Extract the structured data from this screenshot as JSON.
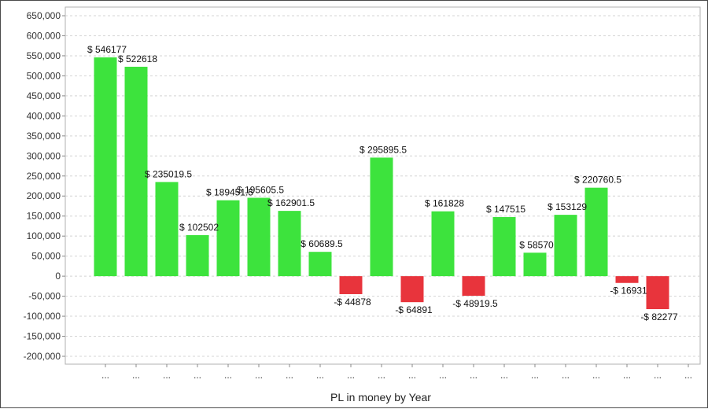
{
  "chart_data": {
    "type": "bar",
    "xlabel": "PL in money by Year",
    "ylim": [
      -200000,
      650000
    ],
    "yticks": [
      "650,000",
      "600,000",
      "550,000",
      "500,000",
      "450,000",
      "400,000",
      "350,000",
      "300,000",
      "250,000",
      "200,000",
      "150,000",
      "100,000",
      "50,000",
      "0",
      "-50,000",
      "-100,000",
      "-150,000",
      "-200,000"
    ],
    "ytick_values": [
      650000,
      600000,
      550000,
      500000,
      450000,
      400000,
      350000,
      300000,
      250000,
      200000,
      150000,
      100000,
      50000,
      0,
      -50000,
      -100000,
      -150000,
      -200000
    ],
    "categories": [
      "...",
      "...",
      "...",
      "...",
      "...",
      "...",
      "...",
      "...",
      "...",
      "...",
      "...",
      "...",
      "...",
      "...",
      "...",
      "...",
      "...",
      "...",
      "...",
      "..."
    ],
    "values": [
      546177,
      522618,
      235019.5,
      102502,
      189451.5,
      195605.5,
      162901.5,
      60689.5,
      -44878,
      295895.5,
      -64891,
      161828,
      -48919.5,
      147515,
      58570,
      153129,
      220760.5,
      -16931,
      -82277,
      0
    ],
    "data_labels": [
      "$ 546177",
      "$ 522618",
      "$ 235019.5",
      "$ 102502",
      "$ 189451.5",
      "$ 195605.5",
      "$ 162901.5",
      "$ 60689.5",
      "-$ 44878",
      "$ 295895.5",
      "-$ 64891",
      "$ 161828",
      "-$ 48919.5",
      "$ 147515",
      "$ 58570",
      "$ 153129",
      "$ 220760.5",
      "-$ 16931",
      "-$ 82277",
      ""
    ],
    "grid": true,
    "colors": {
      "positive": "#3de33d",
      "negative": "#e8343c"
    }
  }
}
